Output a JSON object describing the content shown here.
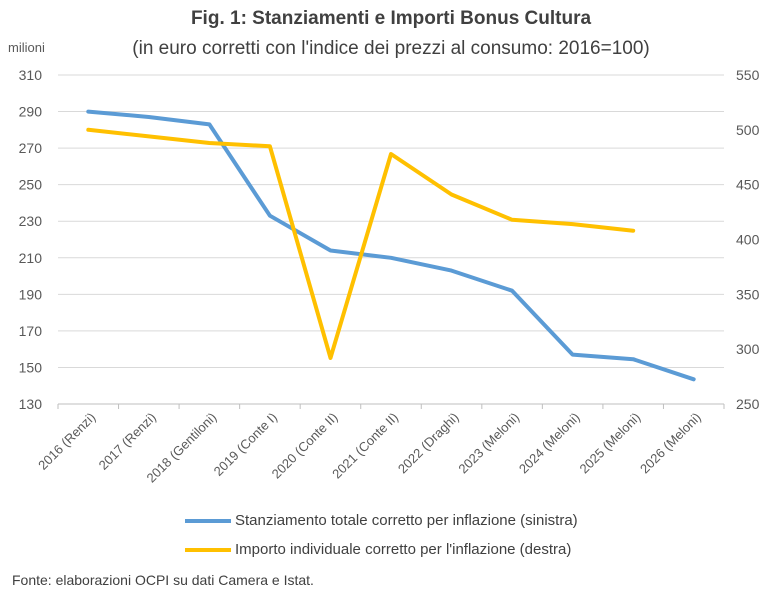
{
  "title": "Fig. 1: Stanziamenti e Importi Bonus Cultura",
  "subtitle": "(in euro corretti con l'indice dei prezzi al consumo: 2016=100)",
  "unit_label": "milioni",
  "source": "Fonte: elaborazioni OCPI su dati Camera e Istat.",
  "chart_data": {
    "type": "line",
    "title": "Fig. 1: Stanziamenti e Importi Bonus Cultura",
    "subtitle": "(in euro corretti con l'indice dei prezzi al consumo: 2016=100)",
    "categories": [
      "2016 (Renzi)",
      "2017 (Renzi)",
      "2018 (Gentiloni)",
      "2019 (Conte I)",
      "2020 (Conte II)",
      "2021 (Conte II)",
      "2022 (Draghi)",
      "2023 (Meloni)",
      "2024 (Meloni)",
      "2025 (Meloni)",
      "2026 (Meloni)"
    ],
    "y_left": {
      "label": "milioni",
      "lim": [
        130,
        310
      ],
      "ticks": [
        130,
        150,
        170,
        190,
        210,
        230,
        250,
        270,
        290,
        310
      ]
    },
    "y_right": {
      "lim": [
        250,
        550
      ],
      "ticks": [
        250,
        300,
        350,
        400,
        450,
        500,
        550
      ]
    },
    "grid": "horizontal",
    "legend_position": "bottom",
    "series": [
      {
        "name": "Stanziamento totale corretto per inflazione (sinistra)",
        "axis": "left",
        "color": "#5b9bd5",
        "values": [
          290,
          287,
          283,
          233,
          214,
          210,
          203,
          192,
          157,
          154.5,
          143.5
        ]
      },
      {
        "name": "Importo individuale corretto per l'inflazione (destra)",
        "axis": "right",
        "color": "#ffc000",
        "values": [
          500,
          494,
          488,
          485,
          292,
          478,
          441,
          418,
          414,
          408,
          null
        ]
      }
    ]
  }
}
